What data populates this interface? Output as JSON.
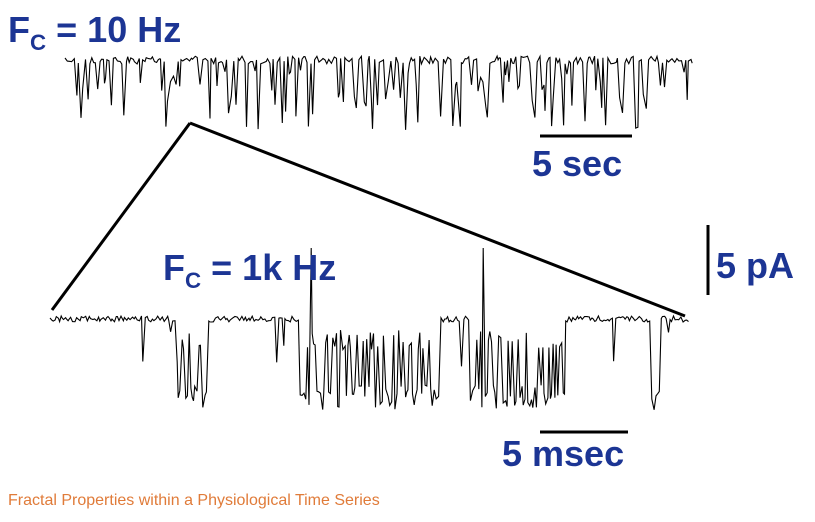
{
  "labels": {
    "top_rate": {
      "symbol": "F",
      "subscript": "C",
      "value": "= 10 Hz"
    },
    "bottom_rate": {
      "symbol": "F",
      "subscript": "C",
      "value": "= 1k Hz"
    }
  },
  "scale_bars": {
    "time_top": "5 sec",
    "current": "5 pA",
    "time_bottom": "5 msec"
  },
  "caption": "Fractal Properties within a Physiological Time Series"
}
